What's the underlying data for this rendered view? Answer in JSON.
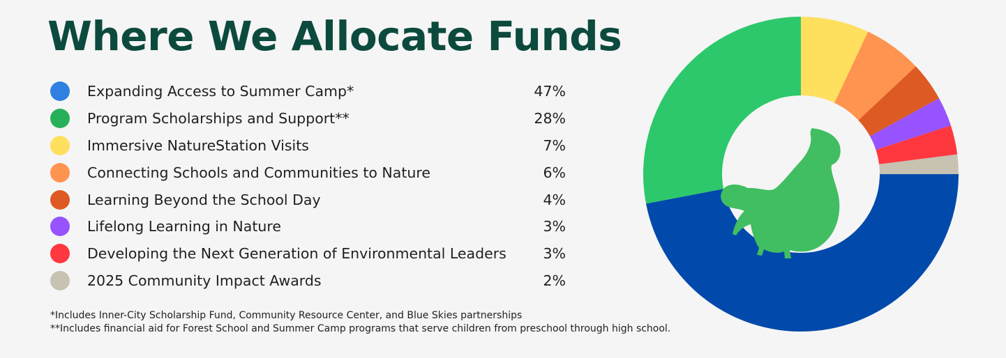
{
  "chart_data": {
    "type": "pie",
    "title": "Where We Allocate Funds",
    "categories": [
      "Expanding Access to Summer Camp*",
      "Program Scholarships and Support**",
      "Immersive NatureStation Visits",
      "Connecting Schools and Communities to Nature",
      "Learning Beyond the School Day",
      "Lifelong Learning in Nature",
      "Developing the Next Generation of Environmental Leaders",
      "2025 Community Impact Awards"
    ],
    "values": [
      47,
      28,
      7,
      6,
      4,
      3,
      3,
      2
    ],
    "value_labels": [
      "47%",
      "28%",
      "7%",
      "6%",
      "4%",
      "3%",
      "3%",
      "2%"
    ],
    "colors": [
      "#2f80e0",
      "#27b05a",
      "#ffdf5e",
      "#ff9450",
      "#dd5a22",
      "#9653ff",
      "#ff3840",
      "#c7c2b1"
    ],
    "donut_colors": [
      "#014aab",
      "#2cc86b",
      "#ffdf5e",
      "#ff9450",
      "#dd5a22",
      "#9653ff",
      "#ff3840",
      "#c7c2b1"
    ],
    "legend_position": "left",
    "center_icon": "bird-icon",
    "center_icon_color": "#41be61"
  },
  "footnotes": [
    "*Includes Inner-City Scholarship Fund, Community Resource Center, and Blue Skies partnerships",
    "**Includes financial aid for Forest School and Summer Camp programs that serve children from preschool through high school."
  ]
}
